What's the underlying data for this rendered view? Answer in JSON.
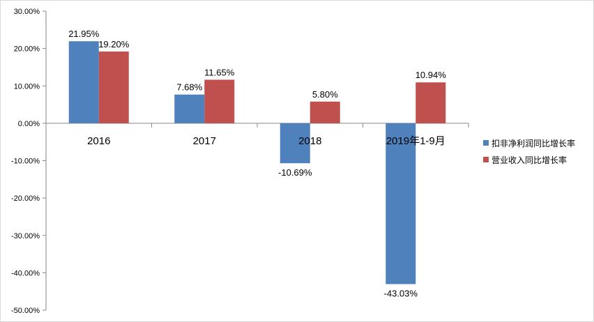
{
  "chart_data": {
    "type": "bar",
    "title": "",
    "xlabel": "",
    "ylabel": "",
    "categories": [
      "2016",
      "2017",
      "2018",
      "2019年1-9月"
    ],
    "series": [
      {
        "name": "扣非净利润同比增长率",
        "color": "#4f81bd",
        "values": [
          21.95,
          7.68,
          -10.69,
          -43.03
        ]
      },
      {
        "name": "营业收入同比增长率",
        "color": "#c0504d",
        "values": [
          19.2,
          11.65,
          5.8,
          10.94
        ]
      }
    ],
    "data_labels": [
      [
        "21.95%",
        "7.68%",
        "-10.69%",
        "-43.03%"
      ],
      [
        "19.20%",
        "11.65%",
        "5.80%",
        "10.94%"
      ]
    ],
    "ylim": [
      -50,
      30
    ],
    "y_ticks": [
      30,
      20,
      10,
      0,
      -10,
      -20,
      -30,
      -40,
      -50
    ],
    "y_tick_labels": [
      "30.00%",
      "20.00%",
      "10.00%",
      "0.00%",
      "-10.00%",
      "-20.00%",
      "-30.00%",
      "-40.00%",
      "-50.00%"
    ],
    "grid": false,
    "legend_position": "right"
  }
}
